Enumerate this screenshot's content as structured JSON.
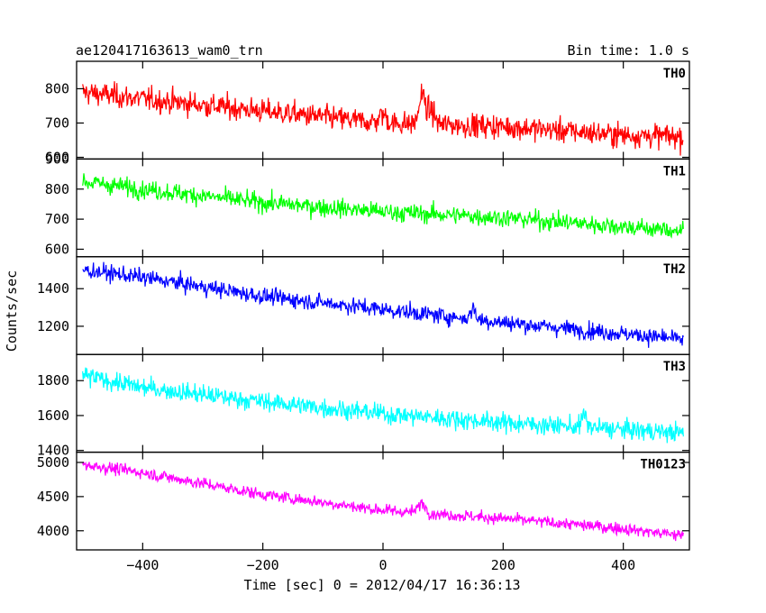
{
  "chart_data": {
    "type": "line",
    "title": "ae120417163613_wam0_trn",
    "subtitle": "Bin time: 1.0 s",
    "xlabel": "Time [sec] 0 = 2012/04/17 16:36:13",
    "ylabel": "Counts/sec",
    "xlim": [
      -510,
      510
    ],
    "x_ticks": [
      -400,
      -200,
      0,
      200,
      400
    ],
    "x_range": [
      -500,
      500
    ],
    "bin_time": 1.0,
    "panels": [
      {
        "name": "TH0",
        "color": "#ff0000",
        "ylim": [
          595,
          880
        ],
        "y_ticks": [
          600,
          700,
          800
        ],
        "trend": [
          [
            -500,
            790
          ],
          [
            -400,
            770
          ],
          [
            -200,
            735
          ],
          [
            0,
            700
          ],
          [
            200,
            690
          ],
          [
            400,
            665
          ],
          [
            500,
            660
          ]
        ],
        "noise": 32,
        "features": [
          {
            "x": 0,
            "width": 12,
            "height": 25
          },
          {
            "x": 65,
            "width": 10,
            "height": 85
          },
          {
            "x": 80,
            "width": 12,
            "height": 40
          }
        ]
      },
      {
        "name": "TH1",
        "color": "#00ff00",
        "ylim": [
          575,
          900
        ],
        "y_ticks": [
          600,
          700,
          800,
          900
        ],
        "trend": [
          [
            -500,
            825
          ],
          [
            -400,
            800
          ],
          [
            -200,
            755
          ],
          [
            0,
            725
          ],
          [
            200,
            705
          ],
          [
            400,
            675
          ],
          [
            500,
            660
          ]
        ],
        "noise": 28,
        "features": []
      },
      {
        "name": "TH2",
        "color": "#0000ff",
        "ylim": [
          1050,
          1570
        ],
        "y_ticks": [
          1200,
          1400
        ],
        "trend": [
          [
            -500,
            1500
          ],
          [
            -400,
            1460
          ],
          [
            -200,
            1360
          ],
          [
            0,
            1290
          ],
          [
            200,
            1220
          ],
          [
            400,
            1160
          ],
          [
            500,
            1130
          ]
        ],
        "noise": 40,
        "features": [
          {
            "x": 150,
            "width": 8,
            "height": 60
          }
        ]
      },
      {
        "name": "TH3",
        "color": "#00ffff",
        "ylim": [
          1390,
          1950
        ],
        "y_ticks": [
          1400,
          1600,
          1800
        ],
        "trend": [
          [
            -500,
            1830
          ],
          [
            -400,
            1760
          ],
          [
            -200,
            1680
          ],
          [
            0,
            1610
          ],
          [
            200,
            1560
          ],
          [
            400,
            1520
          ],
          [
            500,
            1500
          ]
        ],
        "noise": 50,
        "features": [
          {
            "x": 335,
            "width": 8,
            "height": 70
          }
        ]
      },
      {
        "name": "TH0123",
        "color": "#ff00ff",
        "ylim": [
          3720,
          5150
        ],
        "y_ticks": [
          4000,
          4500,
          5000
        ],
        "trend": [
          [
            -500,
            4970
          ],
          [
            -400,
            4850
          ],
          [
            -200,
            4530
          ],
          [
            0,
            4300
          ],
          [
            200,
            4180
          ],
          [
            400,
            4030
          ],
          [
            500,
            3930
          ]
        ],
        "noise": 80,
        "features": [
          {
            "x": 65,
            "width": 12,
            "height": 150
          }
        ]
      }
    ]
  }
}
